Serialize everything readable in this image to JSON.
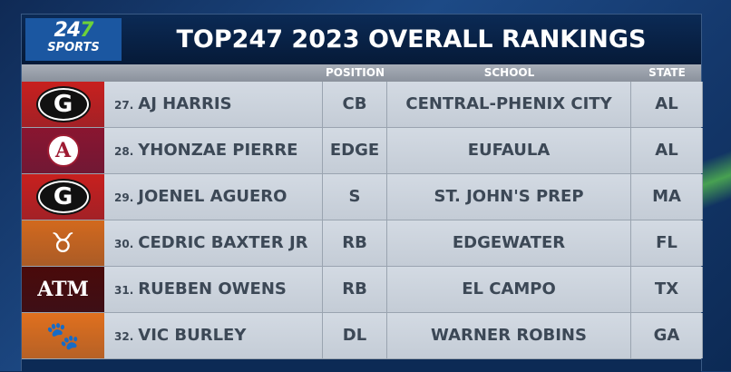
{
  "logo": {
    "number": "247",
    "sports": "SPORTS"
  },
  "title": "TOP247 2023 OVERALL RANKINGS",
  "columns": {
    "position": "POSITION",
    "school": "SCHOOL",
    "state": "STATE"
  },
  "rows": [
    {
      "rank": "27.",
      "name": "AJ HARRIS",
      "position": "CB",
      "school": "CENTRAL-PHENIX CITY",
      "state": "AL",
      "team_icon": "georgia-g-icon",
      "color": "#c8201e"
    },
    {
      "rank": "28.",
      "name": "YHONZAE PIERRE",
      "position": "EDGE",
      "school": "EUFAULA",
      "state": "AL",
      "team_icon": "alabama-icon",
      "color": "#8a1530"
    },
    {
      "rank": "29.",
      "name": "JOENEL AGUERO",
      "position": "S",
      "school": "ST. JOHN'S PREP",
      "state": "MA",
      "team_icon": "georgia-g-icon",
      "color": "#c8201e"
    },
    {
      "rank": "30.",
      "name": "CEDRIC BAXTER JR",
      "position": "RB",
      "school": "EDGEWATER",
      "state": "FL",
      "team_icon": "longhorn-icon",
      "color": "#d2691e"
    },
    {
      "rank": "31.",
      "name": "RUEBEN OWENS",
      "position": "RB",
      "school": "EL CAMPO",
      "state": "TX",
      "team_icon": "texas-am-icon",
      "color": "#4a0a0a"
    },
    {
      "rank": "32.",
      "name": "VIC BURLEY",
      "position": "DL",
      "school": "WARNER ROBINS",
      "state": "GA",
      "team_icon": "tiger-paw-icon",
      "color": "#e0701e"
    }
  ]
}
